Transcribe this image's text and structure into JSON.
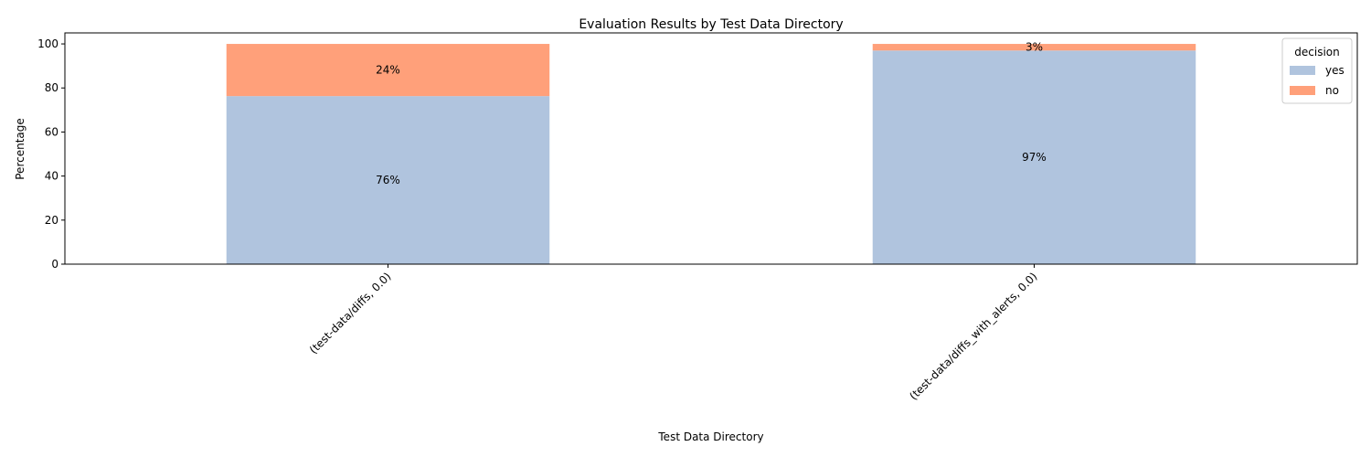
{
  "chart_data": {
    "type": "bar",
    "stacked": true,
    "title": "Evaluation Results by Test Data Directory",
    "xlabel": "Test Data Directory",
    "ylabel": "Percentage",
    "categories": [
      "(test-data/diffs, 0.0)",
      "(test-data/diffs_with_alerts, 0.0)"
    ],
    "series": [
      {
        "name": "yes",
        "values": [
          76.3,
          97.0
        ],
        "labels": [
          "76%",
          "97%"
        ],
        "color": "#b0c4de"
      },
      {
        "name": "no",
        "values": [
          23.7,
          3.0
        ],
        "labels": [
          "24%",
          "3%"
        ],
        "color": "#ffa07a"
      }
    ],
    "ylim": [
      0,
      105
    ],
    "yticks": [
      0,
      20,
      40,
      60,
      80,
      100
    ],
    "grid": false,
    "legend": {
      "title": "decision",
      "placement": "top-right"
    }
  }
}
